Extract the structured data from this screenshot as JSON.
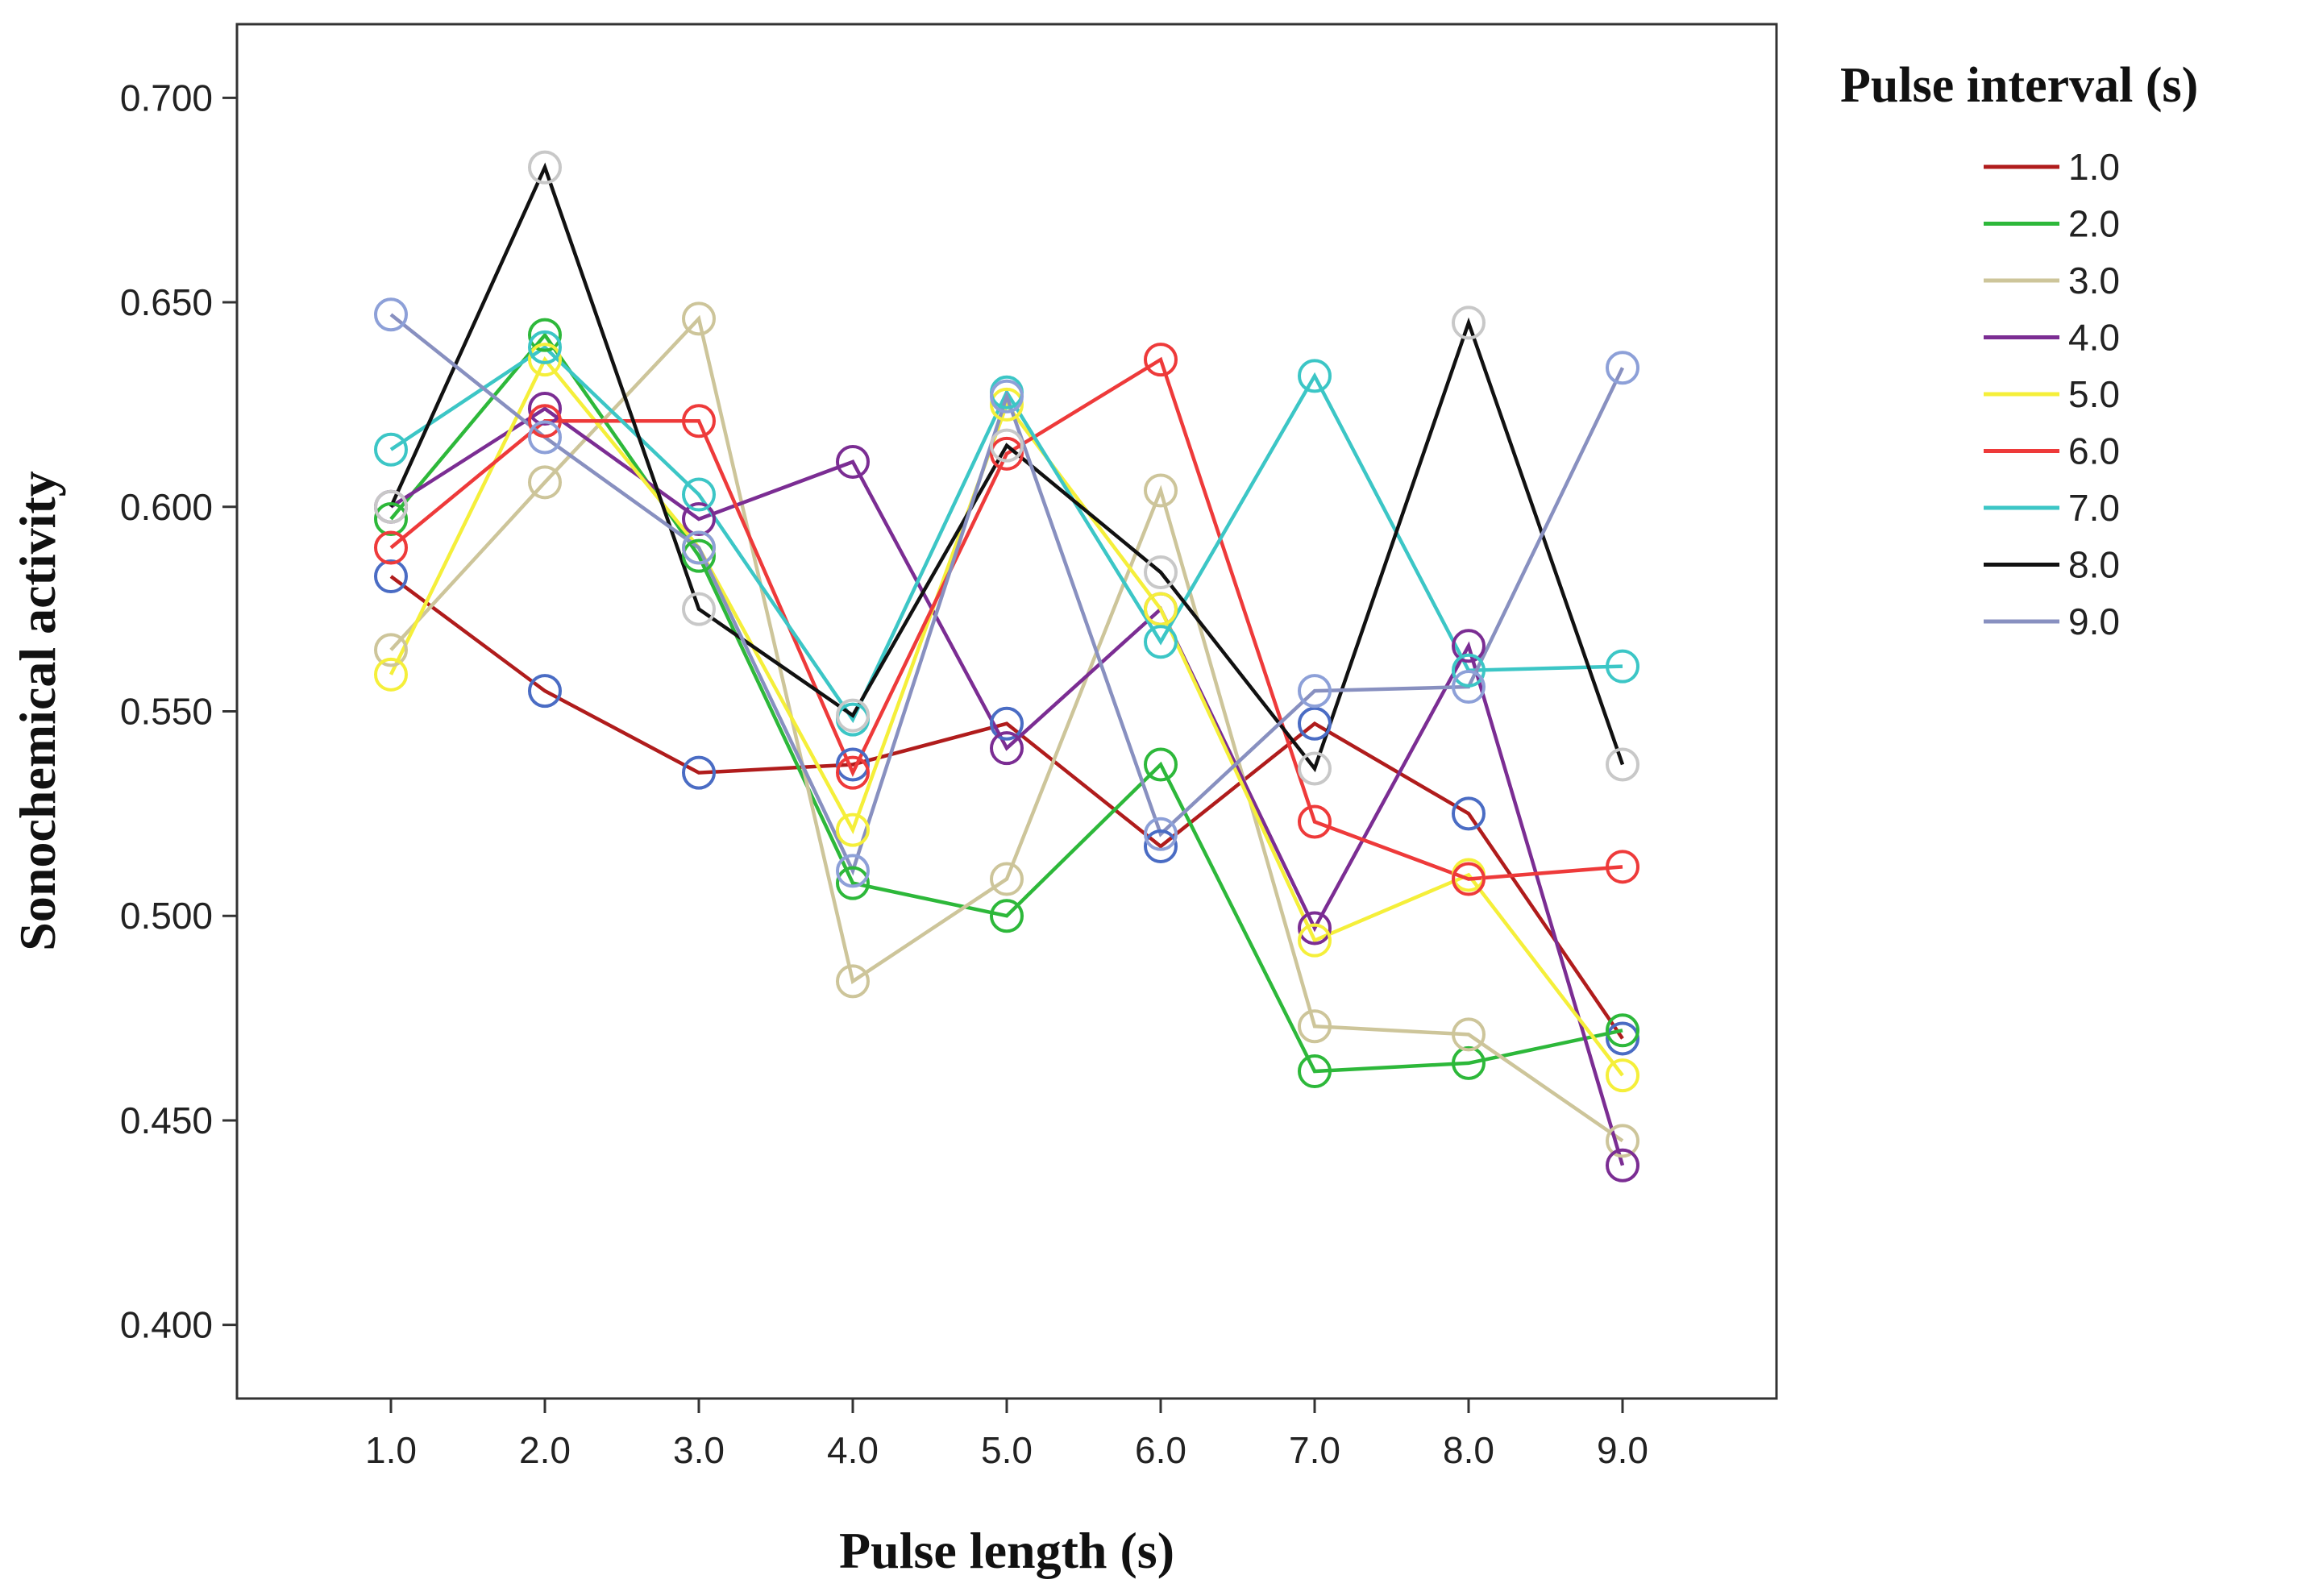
{
  "chart_data": {
    "type": "line",
    "title": "",
    "xlabel": "Pulse length (s)",
    "ylabel": "Sonochemical activity",
    "x": [
      1.0,
      2.0,
      3.0,
      4.0,
      5.0,
      6.0,
      7.0,
      8.0,
      9.0
    ],
    "x_tick_labels": [
      "1.0",
      "2.0",
      "3.0",
      "4.0",
      "5.0",
      "6.0",
      "7.0",
      "8.0",
      "9.0"
    ],
    "xlim": [
      0,
      10
    ],
    "ylim": [
      0.382,
      0.718
    ],
    "y_ticks": [
      0.4,
      0.45,
      0.5,
      0.55,
      0.6,
      0.65,
      0.7
    ],
    "y_tick_labels": [
      "0.400",
      "0.450",
      "0.500",
      "0.550",
      "0.600",
      "0.650",
      "0.700"
    ],
    "grid": false,
    "legend_title": "Pulse interval (s)",
    "legend_position": "right",
    "series": [
      {
        "name": "1.0",
        "line_color": "#b01c1c",
        "values": [
          0.583,
          0.555,
          0.535,
          0.537,
          0.547,
          0.517,
          0.547,
          0.525,
          0.47
        ],
        "marker_colors": [
          "#4a6cc4",
          "#4a6cc4",
          "#4a6cc4",
          "#4a6cc4",
          "#4a6cc4",
          "#4a6cc4",
          "#4a6cc4",
          "#4a6cc4",
          "#4a6cc4"
        ]
      },
      {
        "name": "2.0",
        "line_color": "#2db83a",
        "values": [
          0.597,
          0.642,
          0.588,
          0.508,
          0.5,
          0.537,
          0.462,
          0.464,
          0.472
        ],
        "marker_colors": [
          "#2db83a",
          "#2db83a",
          "#2db83a",
          "#2db83a",
          "#2db83a",
          "#2db83a",
          "#2db83a",
          "#2db83a",
          "#2db83a"
        ]
      },
      {
        "name": "3.0",
        "line_color": "#cdc59a",
        "values": [
          0.565,
          0.606,
          0.646,
          0.484,
          0.509,
          0.604,
          0.473,
          0.471,
          0.445
        ],
        "marker_colors": [
          "#cdc59a",
          "#cdc59a",
          "#cdc59a",
          "#cdc59a",
          "#cdc59a",
          "#cdc59a",
          "#cdc59a",
          "#cdc59a",
          "#cdc59a"
        ]
      },
      {
        "name": "4.0",
        "line_color": "#7b2d93",
        "values": [
          0.6,
          0.624,
          0.597,
          0.611,
          0.541,
          0.575,
          0.497,
          0.566,
          0.439
        ],
        "marker_colors": [
          "#7b2d93",
          "#7b2d93",
          "#7b2d93",
          "#7b2d93",
          "#7b2d93",
          "#7b2d93",
          "#7b2d93",
          "#7b2d93",
          "#7b2d93"
        ]
      },
      {
        "name": "5.0",
        "line_color": "#f5ef3a",
        "values": [
          0.559,
          0.636,
          0.59,
          0.521,
          0.625,
          0.575,
          0.494,
          0.51,
          0.461
        ],
        "marker_colors": [
          "#f5ef3a",
          "#f5ef3a",
          "#f5ef3a",
          "#f5ef3a",
          "#f5ef3a",
          "#f5ef3a",
          "#f5ef3a",
          "#f5ef3a",
          "#f5ef3a"
        ]
      },
      {
        "name": "6.0",
        "line_color": "#ee3a3a",
        "values": [
          0.59,
          0.621,
          0.621,
          0.535,
          0.613,
          0.636,
          0.523,
          0.509,
          0.512
        ],
        "marker_colors": [
          "#ee3a3a",
          "#ee3a3a",
          "#ee3a3a",
          "#ee3a3a",
          "#ee3a3a",
          "#ee3a3a",
          "#ee3a3a",
          "#ee3a3a",
          "#ee3a3a"
        ]
      },
      {
        "name": "7.0",
        "line_color": "#3cc6c6",
        "values": [
          0.614,
          0.639,
          0.603,
          0.548,
          0.628,
          0.567,
          0.632,
          0.56,
          0.561
        ],
        "marker_colors": [
          "#3cc6c6",
          "#3cc6c6",
          "#3cc6c6",
          "#3cc6c6",
          "#3cc6c6",
          "#3cc6c6",
          "#3cc6c6",
          "#3cc6c6",
          "#3cc6c6"
        ]
      },
      {
        "name": "8.0",
        "line_color": "#111111",
        "values": [
          0.6,
          0.683,
          0.575,
          0.549,
          0.615,
          0.584,
          0.536,
          0.645,
          0.537
        ],
        "marker_colors": [
          "#c8c8c8",
          "#c8c8c8",
          "#c8c8c8",
          "#c8c8c8",
          "#c8c8c8",
          "#c8c8c8",
          "#c8c8c8",
          "#c8c8c8",
          "#c8c8c8"
        ]
      },
      {
        "name": "9.0",
        "line_color": "#8890c0",
        "values": [
          0.647,
          0.617,
          0.59,
          0.511,
          0.627,
          0.52,
          0.555,
          0.556,
          0.634
        ],
        "marker_colors": [
          "#8da0d8",
          "#8da0d8",
          "#8da0d8",
          "#8da0d8",
          "#8da0d8",
          "#8da0d8",
          "#8da0d8",
          "#8da0d8",
          "#8da0d8"
        ]
      }
    ]
  }
}
